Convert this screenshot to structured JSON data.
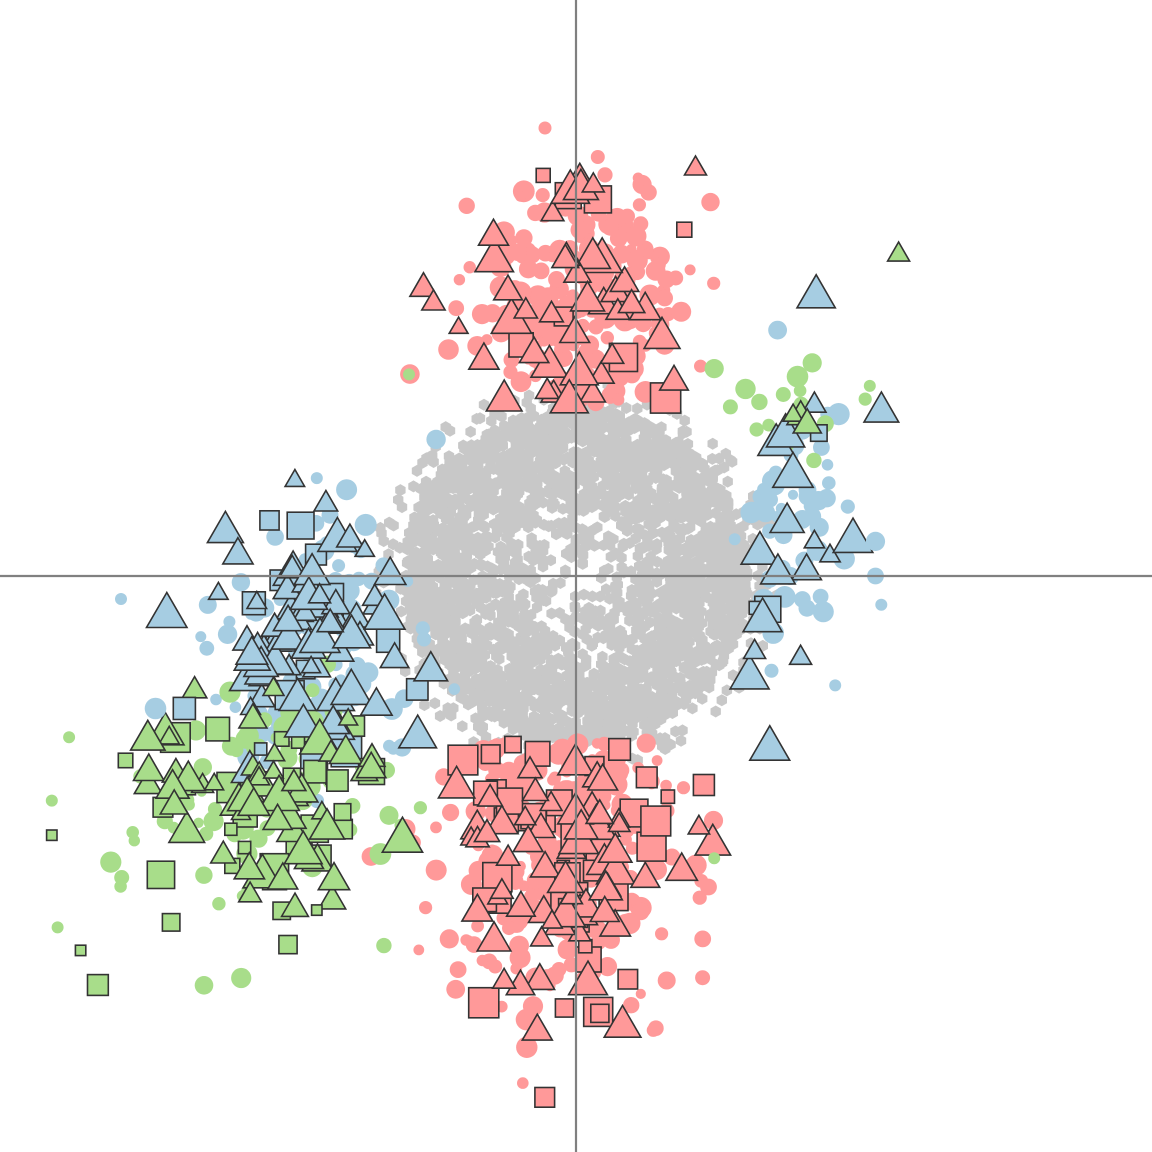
{
  "chart_data": {
    "type": "scatter",
    "title": "",
    "xlabel": "",
    "ylabel": "",
    "xlim": [
      -1,
      1
    ],
    "ylim": [
      -1,
      1
    ],
    "grid": false,
    "axes_lines": true,
    "colors": {
      "background_cloud": "#c8c8c8",
      "red": "#ff9999",
      "blue": "#a6cde2",
      "green": "#a8dd8a",
      "marker_edge": "#333333",
      "axis": "#808080"
    },
    "cloud": {
      "center": [
        0.0,
        0.0
      ],
      "half_width": 0.3,
      "half_height": 0.29,
      "count": 3000,
      "marker": "hexagon"
    },
    "clusters": [
      {
        "color": "red",
        "region": "top",
        "center": [
          0.0,
          0.47
        ],
        "spread": [
          0.09,
          0.12
        ],
        "y_min": 0.3,
        "circles": 220,
        "triangles": 40,
        "squares": 8
      },
      {
        "color": "red",
        "region": "bottom",
        "center": [
          -0.02,
          -0.47
        ],
        "spread": [
          0.1,
          0.14
        ],
        "y_max": -0.29,
        "circles": 260,
        "triangles": 60,
        "squares": 40
      },
      {
        "color": "blue",
        "region": "left",
        "center": [
          -0.46,
          -0.11
        ],
        "spread": [
          0.09,
          0.11
        ],
        "circles": 130,
        "triangles": 70,
        "squares": 14
      },
      {
        "color": "blue",
        "region": "right",
        "center": [
          0.38,
          0.11
        ],
        "spread": [
          0.05,
          0.13
        ],
        "circles": 50,
        "triangles": 16,
        "squares": 3
      },
      {
        "color": "green",
        "region": "lower-left",
        "center": [
          -0.55,
          -0.38
        ],
        "spread": [
          0.11,
          0.1
        ],
        "circles": 80,
        "triangles": 55,
        "squares": 30
      },
      {
        "color": "green",
        "region": "right",
        "center": [
          0.39,
          0.29
        ],
        "spread": [
          0.05,
          0.04
        ],
        "circles": 14,
        "triangles": 3,
        "squares": 0
      }
    ],
    "outliers": [
      {
        "color": "green",
        "marker": "triangle",
        "x": 0.56,
        "y": 0.56,
        "size": 1.0
      },
      {
        "color": "red",
        "marker": "triangle",
        "x": 0.03,
        "y": 0.68,
        "size": 1.0
      },
      {
        "color": "green",
        "marker": "square",
        "x": -0.91,
        "y": -0.45,
        "size": 0.8
      },
      {
        "color": "green",
        "marker": "square",
        "x": -0.86,
        "y": -0.65,
        "size": 0.8
      },
      {
        "color": "green",
        "marker": "square",
        "x": -0.83,
        "y": -0.71,
        "size": 1.6
      },
      {
        "color": "green",
        "marker": "square",
        "x": -0.5,
        "y": -0.64,
        "size": 1.4
      },
      {
        "color": "green",
        "marker": "square",
        "x": -0.45,
        "y": -0.58,
        "size": 0.8
      },
      {
        "color": "green",
        "marker": "circle",
        "x": -0.88,
        "y": -0.28,
        "size": 1.0
      },
      {
        "color": "green",
        "marker": "circle",
        "x": -0.91,
        "y": -0.39,
        "size": 1.0
      },
      {
        "color": "green",
        "marker": "circle",
        "x": -0.9,
        "y": -0.61,
        "size": 1.0
      },
      {
        "color": "green",
        "marker": "circle",
        "x": -0.29,
        "y": 0.35,
        "size": 1.0
      },
      {
        "color": "green",
        "marker": "circle",
        "x": 0.41,
        "y": 0.37,
        "size": 1.6
      },
      {
        "color": "green",
        "marker": "circle",
        "x": 0.51,
        "y": 0.33,
        "size": 1.0
      },
      {
        "color": "green",
        "marker": "circle",
        "x": 0.24,
        "y": 0.36,
        "size": 1.6
      },
      {
        "color": "green",
        "marker": "circle",
        "x": 0.24,
        "y": -0.49,
        "size": 1.0
      },
      {
        "color": "blue",
        "marker": "circle",
        "x": -0.79,
        "y": -0.04,
        "size": 1.0
      },
      {
        "color": "blue",
        "marker": "circle",
        "x": -0.73,
        "y": -0.23,
        "size": 1.8
      },
      {
        "color": "blue",
        "marker": "circle",
        "x": 0.52,
        "y": 0.0,
        "size": 1.4
      },
      {
        "color": "blue",
        "marker": "circle",
        "x": 0.53,
        "y": -0.05,
        "size": 1.0
      },
      {
        "color": "blue",
        "marker": "circle",
        "x": 0.45,
        "y": -0.19,
        "size": 1.0
      },
      {
        "color": "blue",
        "marker": "circle",
        "x": 0.52,
        "y": 0.06,
        "size": 1.6
      },
      {
        "color": "blue",
        "marker": "circle",
        "x": -0.45,
        "y": 0.17,
        "size": 1.0
      },
      {
        "color": "blue",
        "marker": "triangle",
        "x": 0.39,
        "y": -0.14,
        "size": 1.0
      },
      {
        "color": "blue",
        "marker": "triangle",
        "x": 0.31,
        "y": -0.13,
        "size": 1.0
      },
      {
        "color": "blue",
        "marker": "square",
        "x": -0.68,
        "y": -0.23,
        "size": 1.7
      },
      {
        "color": "red",
        "marker": "circle",
        "x": 0.23,
        "y": -0.54,
        "size": 1.4
      },
      {
        "color": "red",
        "marker": "circle",
        "x": 0.22,
        "y": -0.63,
        "size": 1.4
      },
      {
        "color": "red",
        "marker": "circle",
        "x": -0.22,
        "y": -0.63,
        "size": 1.6
      },
      {
        "color": "red",
        "marker": "square",
        "x": -0.02,
        "y": -0.75,
        "size": 1.4
      },
      {
        "color": "red",
        "marker": "square",
        "x": 0.09,
        "y": -0.7,
        "size": 1.5
      }
    ]
  }
}
